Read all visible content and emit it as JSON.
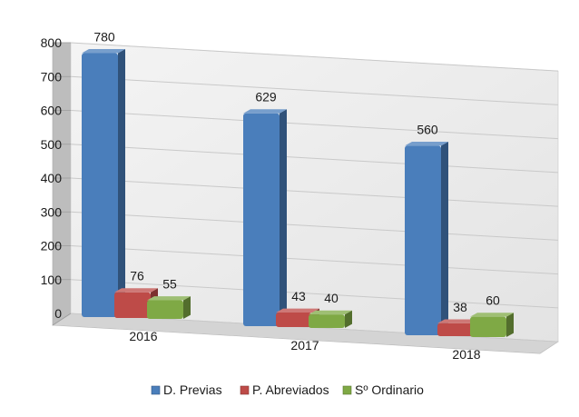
{
  "chart_data": {
    "type": "bar",
    "categories": [
      "2016",
      "2017",
      "2018"
    ],
    "series": [
      {
        "name": "D. Previas",
        "values": [
          780,
          629,
          560
        ],
        "color": "#4a7ebb"
      },
      {
        "name": "P. Abreviados",
        "values": [
          76,
          43,
          38
        ],
        "color": "#be4b48"
      },
      {
        "name": "Sº Ordinario",
        "values": [
          55,
          40,
          60
        ],
        "color": "#7fa945"
      }
    ],
    "ylim": [
      0,
      800
    ],
    "yticks": [
      0,
      100,
      200,
      300,
      400,
      500,
      600,
      700,
      800
    ],
    "grid": true,
    "legend": "bottom",
    "three_d": true
  }
}
